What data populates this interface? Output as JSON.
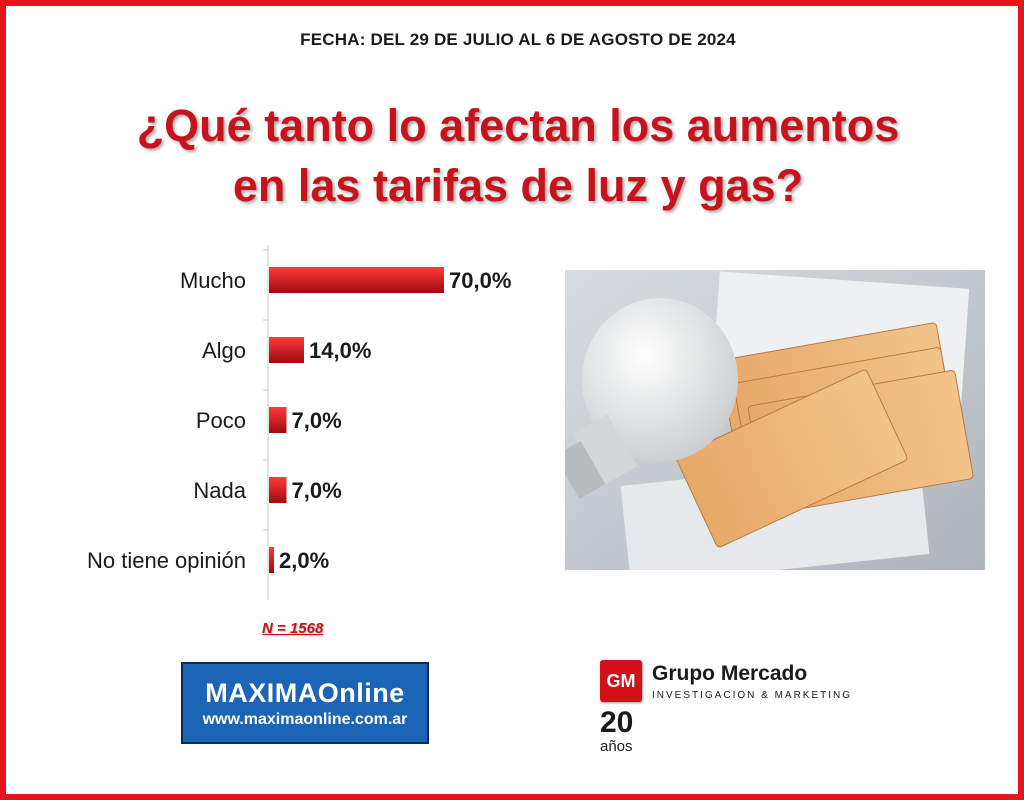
{
  "header": {
    "date": "FECHA: DEL 29 DE JULIO AL 6 DE AGOSTO DE 2024",
    "title_line1": "¿Qué tanto lo afectan los aumentos",
    "title_line2": "en las tarifas de luz y gas?"
  },
  "chart_data": {
    "type": "bar",
    "orientation": "horizontal",
    "categories": [
      "Mucho",
      "Algo",
      "Poco",
      "Nada",
      "No tiene opinión"
    ],
    "values": [
      70.0,
      14.0,
      7.0,
      7.0,
      2.0
    ],
    "value_labels": [
      "70,0%",
      "14,0%",
      "7,0%",
      "7,0%",
      "2,0%"
    ],
    "unit": "%",
    "xlim": [
      0,
      100
    ],
    "bar_color": "#e8141b",
    "title": "",
    "xlabel": "",
    "ylabel": ""
  },
  "sample": {
    "label": "N = 1568"
  },
  "logos": {
    "maxima_name": "MAXIMAOnline",
    "maxima_url": "www.maximaonline.com.ar",
    "gm_badge": "GM",
    "gm_name": "Grupo Mercado",
    "gm_subtitle": "INVESTIGACION & MARKETING",
    "gm_years": "20",
    "gm_years_label": "años"
  },
  "photo": {
    "icon": "lightbulb-and-banknotes-photo"
  },
  "colors": {
    "accent": "#e8141b",
    "title": "#c7131b",
    "maxima_blue": "#1c64b6"
  }
}
